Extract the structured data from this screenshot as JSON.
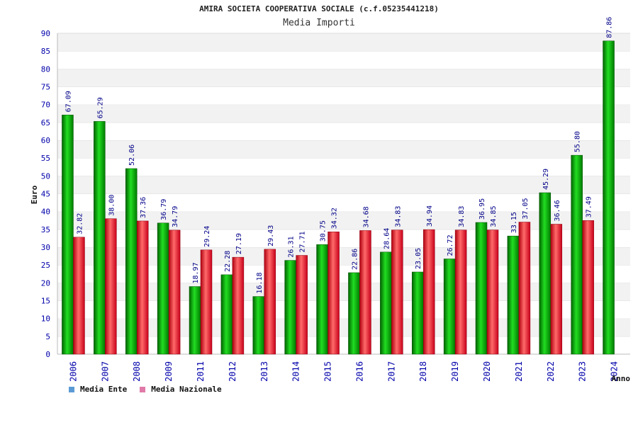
{
  "chart_data": {
    "type": "bar",
    "title": "AMIRA SOCIETA COOPERATIVA SOCIALE (c.f.05235441218)",
    "subtitle": "Media Importi",
    "ylabel": "Euro",
    "xlabel": "Anno",
    "ylim": [
      0,
      90
    ],
    "ytick_step": 5,
    "categories": [
      "2006",
      "2007",
      "2008",
      "2009",
      "2011",
      "2012",
      "2013",
      "2014",
      "2015",
      "2016",
      "2017",
      "2018",
      "2019",
      "2020",
      "2021",
      "2022",
      "2023",
      "2024"
    ],
    "series": [
      {
        "name": "Media Ente",
        "color": "#00b000",
        "values": [
          67.09,
          65.29,
          52.06,
          36.79,
          18.97,
          22.28,
          16.18,
          26.31,
          30.75,
          22.86,
          28.64,
          23.05,
          26.72,
          36.95,
          33.15,
          45.29,
          55.8,
          87.86
        ],
        "labels": [
          "67.09",
          "65.29",
          "52.06",
          "36.79",
          "18.97",
          "22.28",
          "16.18",
          "26.31",
          "30.75",
          "22.86",
          "28.64",
          "23.05",
          "26.72",
          "36.95",
          "33.15",
          "45.29",
          "55.80",
          "87.86"
        ]
      },
      {
        "name": "Media Nazionale",
        "color": "#e0202a",
        "values": [
          32.82,
          38.0,
          37.36,
          34.79,
          29.24,
          27.19,
          29.43,
          27.71,
          34.32,
          34.68,
          34.83,
          34.94,
          34.83,
          34.85,
          37.05,
          36.46,
          37.49,
          null
        ],
        "labels": [
          "32.82",
          "38.00",
          "37.36",
          "34.79",
          "29.24",
          "27.19",
          "29.43",
          "27.71",
          "34.32",
          "34.68",
          "34.83",
          "34.94",
          "34.83",
          "34.85",
          "37.05",
          "36.46",
          "37.49",
          null
        ]
      }
    ],
    "legend": {
      "placement": "bottom-left",
      "items": [
        {
          "label": "Media Ente",
          "color": "#5b9bd5"
        },
        {
          "label": "Media Nazionale",
          "color": "#e07aa8"
        }
      ]
    },
    "grid": true,
    "band_colors": [
      "#ffffff",
      "#f2f2f2"
    ]
  }
}
